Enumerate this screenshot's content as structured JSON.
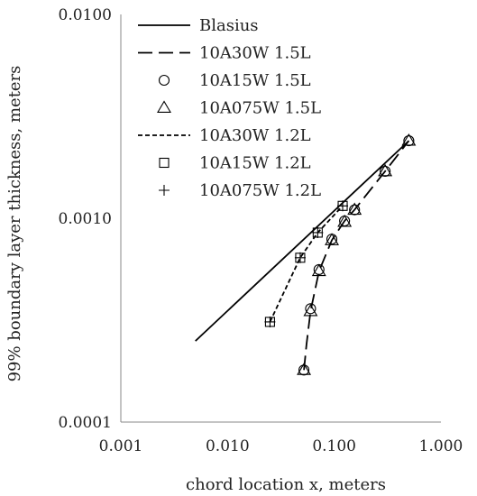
{
  "chart_data": {
    "type": "scatter",
    "xlabel": "chord location x, meters",
    "ylabel": "99% boundary layer thickness, meters",
    "x_scale": "log",
    "y_scale": "log",
    "xlim": [
      0.001,
      1.0
    ],
    "ylim": [
      0.0001,
      0.01
    ],
    "x_ticks": [
      {
        "value": 0.001,
        "label": "0.001"
      },
      {
        "value": 0.01,
        "label": "0.010"
      },
      {
        "value": 0.1,
        "label": "0.100"
      },
      {
        "value": 1.0,
        "label": "1.000"
      }
    ],
    "y_ticks": [
      {
        "value": 0.0001,
        "label": "0.0001"
      },
      {
        "value": 0.001,
        "label": "0.0010"
      },
      {
        "value": 0.01,
        "label": "0.0100"
      }
    ],
    "grid": false,
    "legend_position": "top-left",
    "series": [
      {
        "name": "Blasius",
        "style": "line-solid",
        "color": "#000000",
        "x": [
          0.005,
          0.5
        ],
        "y": [
          0.00025,
          0.0024
        ]
      },
      {
        "name": "10A30W 1.5L",
        "style": "line-longdash",
        "color": "#000000",
        "x": [
          0.052,
          0.055,
          0.06,
          0.072,
          0.095,
          0.125,
          0.155,
          0.3,
          0.5
        ],
        "y": [
          0.00018,
          0.00024,
          0.00035,
          0.00055,
          0.00078,
          0.00097,
          0.0011,
          0.0017,
          0.0024
        ]
      },
      {
        "name": "10A15W 1.5L",
        "style": "marker-circle",
        "color": "#000000",
        "x": [
          0.052,
          0.06,
          0.072,
          0.095,
          0.125,
          0.155,
          0.3,
          0.5
        ],
        "y": [
          0.00018,
          0.00036,
          0.00056,
          0.00079,
          0.00097,
          0.0011,
          0.0017,
          0.0024
        ]
      },
      {
        "name": "10A075W 1.5L",
        "style": "marker-triangle",
        "color": "#000000",
        "x": [
          0.052,
          0.06,
          0.072,
          0.095,
          0.125,
          0.155,
          0.3,
          0.5
        ],
        "y": [
          0.00018,
          0.00035,
          0.00055,
          0.00078,
          0.00096,
          0.0011,
          0.0017,
          0.0024
        ]
      },
      {
        "name": "10A30W 1.2L",
        "style": "line-shortdash",
        "color": "#000000",
        "x": [
          0.025,
          0.048,
          0.07,
          0.12
        ],
        "y": [
          0.00031,
          0.00064,
          0.00085,
          0.00115
        ]
      },
      {
        "name": "10A15W 1.2L",
        "style": "marker-square",
        "color": "#000000",
        "x": [
          0.025,
          0.048,
          0.07,
          0.12
        ],
        "y": [
          0.00031,
          0.00064,
          0.00085,
          0.00115
        ]
      },
      {
        "name": "10A075W 1.2L",
        "style": "marker-plus",
        "color": "#000000",
        "x": [
          0.025,
          0.048,
          0.07,
          0.12
        ],
        "y": [
          0.00031,
          0.00064,
          0.00085,
          0.00115
        ]
      }
    ]
  }
}
